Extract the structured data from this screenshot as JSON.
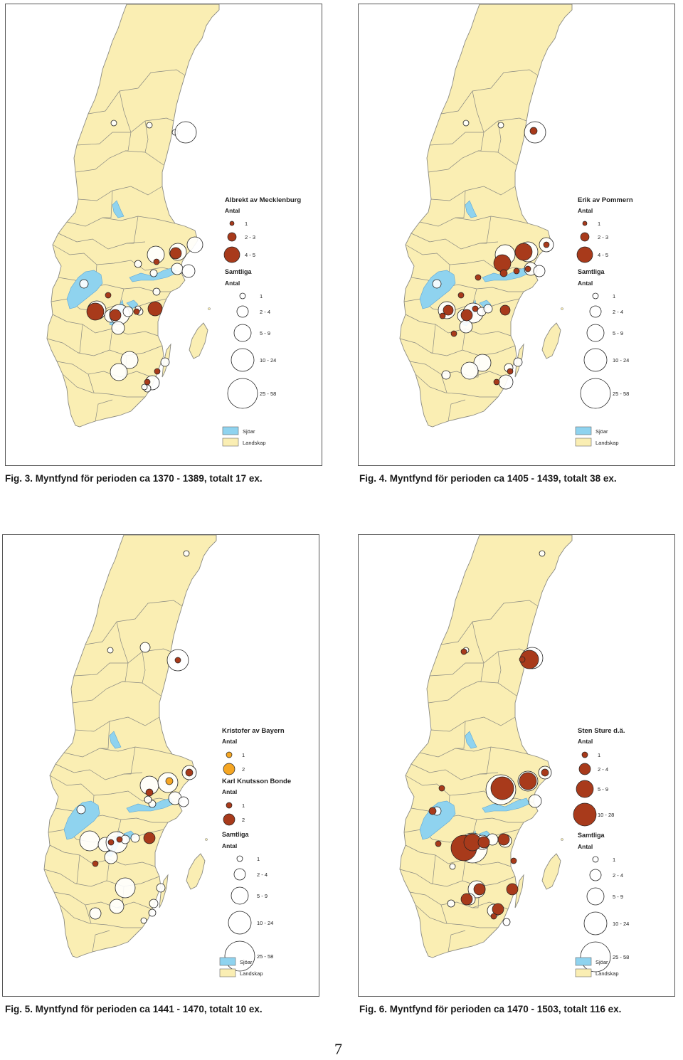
{
  "colors": {
    "land": "#faeeb3",
    "border": "#8a8a82",
    "water": "#8fd3ef",
    "lake_outline": "#5aa5d6",
    "find_dark": "#a83a1b",
    "find_orange": "#f5a623",
    "find_white": "#ffffff"
  },
  "figures": [
    {
      "caption": "Fig. 3. Myntfynd för perioden ca 1370 - 1389, totalt 17 ex.",
      "legend": {
        "groups": [
          {
            "title": "Albrekt av Mecklenburg",
            "subtitle": "Antal",
            "fill": "#a83a1b",
            "items": [
              {
                "label": "1",
                "r": 3
              },
              {
                "label": "2 - 3",
                "r": 6
              },
              {
                "label": "4 - 5",
                "r": 11
              }
            ]
          }
        ],
        "samtliga": {
          "title": "Samtliga",
          "subtitle": "Antal",
          "items": [
            {
              "label": "1",
              "r": 4
            },
            {
              "label": "2 - 4",
              "r": 8
            },
            {
              "label": "5 - 9",
              "r": 12
            },
            {
              "label": "10 - 24",
              "r": 16
            },
            {
              "label": "25 - 58",
              "r": 21
            }
          ]
        },
        "sjoar": "Sjöar",
        "landskap": "Landskap"
      },
      "white_finds": [
        [
          152,
          167,
          4
        ],
        [
          202,
          170,
          4
        ],
        [
          238,
          180,
          4
        ],
        [
          253,
          180,
          15
        ],
        [
          211,
          352,
          12
        ],
        [
          242,
          348,
          12
        ],
        [
          266,
          338,
          11
        ],
        [
          241,
          372,
          8
        ],
        [
          257,
          375,
          9
        ],
        [
          208,
          378,
          5
        ],
        [
          186,
          365,
          5
        ],
        [
          212,
          404,
          5
        ],
        [
          110,
          393,
          6
        ],
        [
          128,
          430,
          13
        ],
        [
          148,
          438,
          9
        ],
        [
          160,
          436,
          14
        ],
        [
          172,
          432,
          7
        ],
        [
          188,
          432,
          5
        ],
        [
          158,
          455,
          9
        ],
        [
          186,
          428,
          4
        ],
        [
          174,
          500,
          12
        ],
        [
          159,
          517,
          12
        ],
        [
          224,
          503,
          6
        ],
        [
          206,
          532,
          10
        ],
        [
          199,
          540,
          5
        ],
        [
          195,
          538,
          4
        ]
      ],
      "dark_finds": [
        [
          144,
          409,
          4
        ],
        [
          126,
          432,
          12
        ],
        [
          154,
          437,
          8
        ],
        [
          184,
          432,
          4
        ],
        [
          210,
          428,
          10
        ],
        [
          239,
          350,
          8
        ],
        [
          212,
          362,
          4
        ],
        [
          199,
          531,
          4
        ],
        [
          213,
          516,
          4
        ]
      ]
    },
    {
      "caption": "Fig. 4. Myntfynd för perioden ca 1405 - 1439, totalt 38 ex.",
      "legend": {
        "groups": [
          {
            "title": "Erik av Pommern",
            "subtitle": "Antal",
            "fill": "#a83a1b",
            "items": [
              {
                "label": "1",
                "r": 3
              },
              {
                "label": "2 - 3",
                "r": 6
              },
              {
                "label": "4 - 5",
                "r": 11
              }
            ]
          }
        ],
        "samtliga": {
          "title": "Samtliga",
          "subtitle": "Antal",
          "items": [
            {
              "label": "1",
              "r": 4
            },
            {
              "label": "2 - 4",
              "r": 8
            },
            {
              "label": "5 - 9",
              "r": 12
            },
            {
              "label": "10 - 24",
              "r": 16
            },
            {
              "label": "25 - 58",
              "r": 21
            }
          ]
        },
        "sjoar": "Sjöar",
        "landskap": "Landskap"
      },
      "white_finds": [
        [
          151,
          167,
          4
        ],
        [
          200,
          170,
          4
        ],
        [
          248,
          180,
          15
        ],
        [
          206,
          352,
          14
        ],
        [
          238,
          348,
          14
        ],
        [
          264,
          338,
          10
        ],
        [
          242,
          372,
          9
        ],
        [
          254,
          375,
          8
        ],
        [
          110,
          393,
          6
        ],
        [
          124,
          430,
          12
        ],
        [
          148,
          438,
          9
        ],
        [
          161,
          434,
          14
        ],
        [
          173,
          432,
          6
        ],
        [
          182,
          428,
          6
        ],
        [
          151,
          453,
          9
        ],
        [
          174,
          504,
          12
        ],
        [
          156,
          515,
          12
        ],
        [
          211,
          511,
          6
        ],
        [
          224,
          503,
          6
        ],
        [
          207,
          531,
          10
        ],
        [
          123,
          521,
          6
        ]
      ],
      "dark_finds": [
        [
          246,
          178,
          5
        ],
        [
          264,
          338,
          4
        ],
        [
          202,
          364,
          12
        ],
        [
          232,
          348,
          12
        ],
        [
          238,
          372,
          4
        ],
        [
          222,
          375,
          4
        ],
        [
          204,
          378,
          5
        ],
        [
          168,
          384,
          4
        ],
        [
          144,
          409,
          4
        ],
        [
          126,
          430,
          7
        ],
        [
          152,
          437,
          8
        ],
        [
          118,
          438,
          4
        ],
        [
          164,
          428,
          4
        ],
        [
          206,
          430,
          7
        ],
        [
          134,
          463,
          4
        ],
        [
          194,
          531,
          4
        ],
        [
          213,
          516,
          4
        ]
      ]
    },
    {
      "caption": "Fig. 5. Myntfynd för perioden ca 1441 - 1470, totalt 10 ex.",
      "legend": {
        "groups": [
          {
            "title": "Kristofer av Bayern",
            "subtitle": "Antal",
            "fill": "#f5a623",
            "items": [
              {
                "label": "1",
                "r": 4
              },
              {
                "label": "2",
                "r": 8
              }
            ]
          },
          {
            "title": "Karl Knutsson Bonde",
            "subtitle": "Antal",
            "fill": "#a83a1b",
            "items": [
              {
                "label": "1",
                "r": 4
              },
              {
                "label": "2",
                "r": 8
              }
            ]
          }
        ],
        "samtliga": {
          "title": "Samtliga",
          "subtitle": "Antal",
          "items": [
            {
              "label": "1",
              "r": 4
            },
            {
              "label": "2 - 4",
              "r": 8
            },
            {
              "label": "5 - 9",
              "r": 12
            },
            {
              "label": "10 - 24",
              "r": 16
            },
            {
              "label": "25 - 58",
              "r": 21
            }
          ]
        },
        "sjoar": "Sjöar",
        "landskap": "Landskap"
      },
      "white_finds": [
        [
          151,
          162,
          4
        ],
        [
          200,
          158,
          7
        ],
        [
          258,
          26,
          4
        ],
        [
          246,
          176,
          15
        ],
        [
          206,
          352,
          13
        ],
        [
          232,
          348,
          14
        ],
        [
          262,
          334,
          10
        ],
        [
          242,
          370,
          9
        ],
        [
          254,
          375,
          7
        ],
        [
          210,
          378,
          5
        ],
        [
          204,
          372,
          5
        ],
        [
          110,
          386,
          6
        ],
        [
          122,
          430,
          14
        ],
        [
          144,
          435,
          10
        ],
        [
          160,
          432,
          15
        ],
        [
          172,
          428,
          6
        ],
        [
          186,
          426,
          6
        ],
        [
          152,
          453,
          9
        ],
        [
          172,
          496,
          14
        ],
        [
          130,
          532,
          8
        ],
        [
          160,
          522,
          10
        ],
        [
          222,
          496,
          6
        ],
        [
          212,
          518,
          6
        ],
        [
          210,
          531,
          5
        ],
        [
          198,
          542,
          4
        ]
      ],
      "dark_finds": [
        [
          246,
          176,
          4
        ],
        [
          262,
          334,
          5
        ],
        [
          206,
          362,
          5
        ],
        [
          152,
          432,
          4
        ],
        [
          164,
          428,
          4
        ],
        [
          206,
          426,
          8
        ],
        [
          130,
          462,
          4
        ]
      ],
      "orange_finds": [
        [
          234,
          346,
          5
        ]
      ]
    },
    {
      "caption": "Fig. 6. Myntfynd för perioden ca 1470 - 1503, totalt 116 ex.",
      "legend": {
        "groups": [
          {
            "title": "Sten Sture d.ä.",
            "subtitle": "Antal",
            "fill": "#a83a1b",
            "items": [
              {
                "label": "1",
                "r": 4
              },
              {
                "label": "2 - 4",
                "r": 8
              },
              {
                "label": "5 - 9",
                "r": 12
              },
              {
                "label": "10 - 28",
                "r": 16
              }
            ]
          }
        ],
        "samtliga": {
          "title": "Samtliga",
          "subtitle": "Antal",
          "items": [
            {
              "label": "1",
              "r": 4
            },
            {
              "label": "2 - 4",
              "r": 8
            },
            {
              "label": "5 - 9",
              "r": 12
            },
            {
              "label": "10 - 24",
              "r": 16
            },
            {
              "label": "25 - 58",
              "r": 21
            }
          ]
        },
        "sjoar": "Sjöar",
        "landskap": "Landskap"
      },
      "white_finds": [
        [
          151,
          162,
          4
        ],
        [
          258,
          26,
          4
        ],
        [
          244,
          173,
          15
        ],
        [
          200,
          358,
          21
        ],
        [
          238,
          346,
          14
        ],
        [
          262,
          334,
          9
        ],
        [
          248,
          374,
          9
        ],
        [
          110,
          388,
          6
        ],
        [
          160,
          440,
          21
        ],
        [
          174,
          432,
          10
        ],
        [
          188,
          428,
          8
        ],
        [
          206,
          430,
          9
        ],
        [
          132,
          466,
          4
        ],
        [
          166,
          498,
          12
        ],
        [
          190,
          528,
          9
        ],
        [
          156,
          512,
          8
        ],
        [
          208,
          544,
          5
        ],
        [
          130,
          518,
          5
        ]
      ],
      "dark_finds": [
        [
          148,
          164,
          4
        ],
        [
          240,
          175,
          13
        ],
        [
          230,
          175,
          4
        ],
        [
          202,
          356,
          16
        ],
        [
          238,
          346,
          12
        ],
        [
          262,
          334,
          5
        ],
        [
          117,
          356,
          4
        ],
        [
          104,
          388,
          5
        ],
        [
          148,
          440,
          18
        ],
        [
          160,
          432,
          12
        ],
        [
          176,
          432,
          8
        ],
        [
          112,
          434,
          4
        ],
        [
          204,
          428,
          8
        ],
        [
          170,
          498,
          8
        ],
        [
          152,
          512,
          8
        ],
        [
          216,
          498,
          8
        ],
        [
          196,
          526,
          8
        ],
        [
          190,
          536,
          4
        ],
        [
          218,
          458,
          4
        ]
      ]
    }
  ],
  "page_number": "7"
}
